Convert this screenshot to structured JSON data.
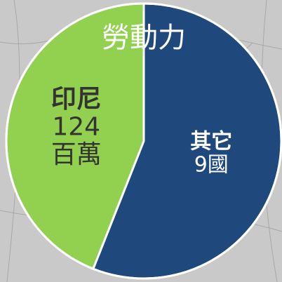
{
  "chart_data": {
    "type": "pie",
    "title": "勞動力",
    "slices": [
      {
        "name": "其它",
        "label_lines": [
          "9國"
        ],
        "value": 56,
        "color": "#1f497d",
        "text_color": "#ffffff"
      },
      {
        "name": "印尼",
        "label_lines": [
          "124",
          "百萬"
        ],
        "value": 44,
        "color": "#92d050",
        "text_color": "#333333"
      }
    ]
  }
}
